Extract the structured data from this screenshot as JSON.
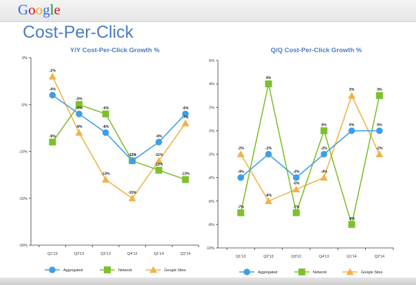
{
  "header": {
    "logo": "Google",
    "logo_colors": [
      "#3369e8",
      "#d50f25",
      "#eeb211",
      "#3369e8",
      "#009925",
      "#d50f25"
    ]
  },
  "page": {
    "title": "Cost-Per-Click"
  },
  "series_colors": {
    "Aggregated": "#3d9ee6",
    "Network": "#7dc12d",
    "Google Sites": "#f0b349"
  },
  "chart_data": [
    {
      "type": "line",
      "title": "Y/Y Cost-Per-Click Growth %",
      "categories": [
        "Q1'13",
        "Q2'13",
        "Q3'13",
        "Q4'13",
        "Q1'14",
        "Q2'14"
      ],
      "ylim": [
        -20,
        0
      ],
      "yticks": [
        0,
        -5,
        -10,
        -15,
        -20
      ],
      "ytick_labels": [
        "0%",
        "-5%",
        "-10%",
        "-15%",
        "-20%"
      ],
      "grid": false,
      "legend": "bottom",
      "series": [
        {
          "name": "Aggregated",
          "marker": "circle",
          "values": [
            -4,
            -6,
            -8,
            -11,
            -9,
            -6
          ],
          "labels": [
            "-4%",
            "-6%",
            "-8%",
            "-11%",
            "-9%",
            "-6%"
          ]
        },
        {
          "name": "Network",
          "marker": "square",
          "values": [
            -9,
            -5,
            -6,
            -11,
            -12,
            -13
          ],
          "labels": [
            "-9%",
            "-5%",
            "-6%",
            "-11%",
            "-12%",
            "-13%"
          ]
        },
        {
          "name": "Google Sites",
          "marker": "triangle",
          "values": [
            -2,
            -8,
            -13,
            -15,
            -11,
            -7
          ],
          "labels": [
            "-2%",
            "-8%",
            "-13%",
            "-15%",
            "-11%",
            "-7%"
          ]
        }
      ]
    },
    {
      "type": "line",
      "title": "Q/Q Cost-Per-Click Growth %",
      "categories": [
        "Q1'13",
        "Q2'13",
        "Q3'13",
        "Q4'13",
        "Q1'14",
        "Q2'14"
      ],
      "ylim": [
        -10,
        6
      ],
      "yticks": [
        6,
        4,
        2,
        0,
        -2,
        -4,
        -6,
        -8,
        -10
      ],
      "ytick_labels": [
        "6%",
        "4%",
        "2%",
        "0%",
        "-2%",
        "-4%",
        "-6%",
        "-8%",
        "-10%"
      ],
      "grid": false,
      "legend": "bottom",
      "series": [
        {
          "name": "Aggregated",
          "marker": "circle",
          "values": [
            -4,
            -2,
            -4,
            -2,
            0,
            0
          ],
          "labels": [
            "-4%",
            "-2%",
            "-4%",
            "-2%",
            "0%",
            "0%"
          ]
        },
        {
          "name": "Network",
          "marker": "square",
          "values": [
            -7,
            4,
            -7,
            0,
            -8,
            3
          ],
          "labels": [
            "-7%",
            "4%",
            "-7%",
            "0%",
            "-8%",
            "3%"
          ]
        },
        {
          "name": "Google Sites",
          "marker": "triangle",
          "values": [
            -2,
            -6,
            -5,
            -4,
            3,
            -2
          ],
          "labels": [
            "-2%",
            "-6%",
            "-5%",
            "-4%",
            "3%",
            "-2%"
          ]
        }
      ]
    }
  ]
}
